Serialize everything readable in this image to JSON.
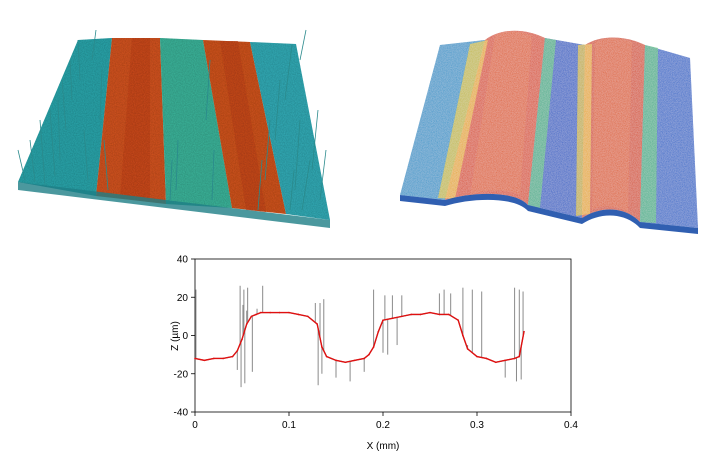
{
  "panels": {
    "left_surface": {
      "name": "raw-surface",
      "stripe_colors": [
        "#2aa8b0",
        "#d9501e",
        "#3fb8a0",
        "#c8521e",
        "#36b1b8"
      ]
    },
    "right_surface": {
      "name": "filtered-surface",
      "stripe_colors": [
        "#1f64c8",
        "#d84a1e",
        "#1e70cc",
        "#cc4a1e",
        "#1f6ccc"
      ]
    }
  },
  "chart_data": {
    "type": "line",
    "title": "",
    "xlabel": "X (mm)",
    "ylabel": "Z (µm)",
    "xlim": [
      0,
      0.4
    ],
    "ylim": [
      -40,
      40
    ],
    "xticks": [
      0,
      0.1,
      0.2,
      0.3,
      0.4
    ],
    "xtick_labels": [
      "0",
      "0.1",
      "0.2",
      "0.3",
      "0.4"
    ],
    "yticks": [
      40,
      20,
      0,
      -20,
      -40
    ],
    "ytick_labels": [
      "40",
      "20",
      "0",
      "-20",
      "-40"
    ],
    "grid": false,
    "series": [
      {
        "color": "#e01010",
        "x": [
          0.0,
          0.01,
          0.02,
          0.03,
          0.04,
          0.045,
          0.05,
          0.055,
          0.06,
          0.065,
          0.07,
          0.08,
          0.09,
          0.1,
          0.11,
          0.12,
          0.13,
          0.135,
          0.14,
          0.15,
          0.16,
          0.17,
          0.18,
          0.185,
          0.19,
          0.195,
          0.2,
          0.21,
          0.22,
          0.23,
          0.24,
          0.25,
          0.26,
          0.27,
          0.28,
          0.285,
          0.29,
          0.3,
          0.31,
          0.32,
          0.33,
          0.34,
          0.345,
          0.35
        ],
        "y": [
          -12,
          -13,
          -12,
          -12,
          -11,
          -8,
          -2,
          6,
          10,
          11,
          12,
          12,
          12,
          12,
          11,
          10,
          6,
          -6,
          -11,
          -13,
          -14,
          -13,
          -12,
          -10,
          -6,
          2,
          8,
          9,
          10,
          11,
          11,
          12,
          11,
          11,
          8,
          0,
          -7,
          -11,
          -12,
          -14,
          -13,
          -12,
          -11,
          2
        ]
      },
      {
        "color": "#8a8a8a",
        "x": [
          0.001,
          0.045,
          0.048,
          0.049,
          0.051,
          0.052,
          0.053,
          0.055,
          0.056,
          0.061,
          0.066,
          0.072,
          0.128,
          0.131,
          0.133,
          0.135,
          0.137,
          0.15,
          0.165,
          0.18,
          0.19,
          0.2,
          0.202,
          0.205,
          0.21,
          0.215,
          0.22,
          0.26,
          0.265,
          0.272,
          0.285,
          0.29,
          0.295,
          0.298,
          0.305,
          0.33,
          0.34,
          0.342,
          0.345,
          0.347,
          0.349
        ],
        "y": [
          24,
          -18,
          26,
          -27,
          16,
          24,
          -25,
          13,
          25,
          -19,
          14,
          26,
          17,
          -26,
          17,
          -20,
          19,
          -22,
          -24,
          -19,
          24,
          -9,
          21,
          -10,
          21,
          -5,
          21,
          22,
          24,
          22,
          25,
          -5,
          24,
          -10,
          23,
          -22,
          25,
          -24,
          24,
          -23,
          23
        ]
      }
    ]
  }
}
